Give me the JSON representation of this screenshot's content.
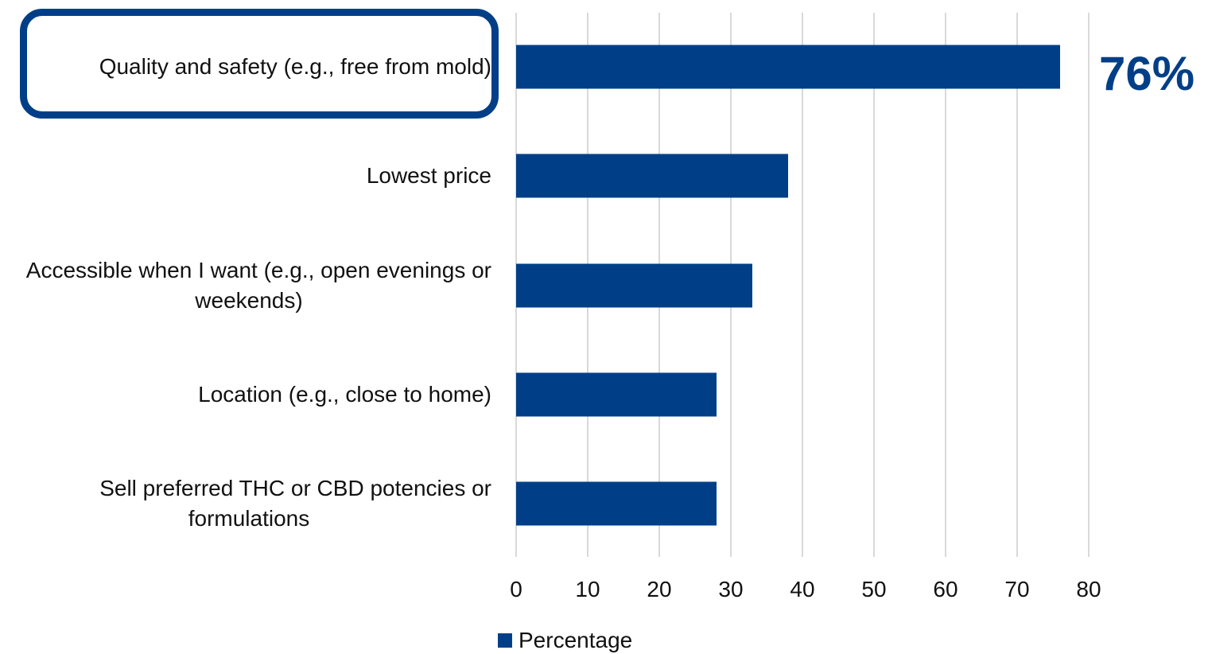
{
  "chart_data": {
    "type": "bar",
    "orientation": "horizontal",
    "categories": [
      "Quality and safety (e.g., free from mold)",
      "Lowest price",
      "Accessible when I want (e.g., open evenings or weekends)",
      "Location (e.g., close to home)",
      "Sell preferred THC or CBD potencies or formulations"
    ],
    "category_lines": [
      [
        "Quality and safety (e.g., free from mold)"
      ],
      [
        "Lowest price"
      ],
      [
        "Accessible when I want (e.g., open evenings or",
        "weekends)"
      ],
      [
        "Location (e.g., close to home)"
      ],
      [
        "Sell preferred THC or CBD potencies or",
        "formulations"
      ]
    ],
    "series": [
      {
        "name": "Percentage",
        "values": [
          76,
          38,
          33,
          28,
          28
        ]
      }
    ],
    "xlim": [
      0,
      80
    ],
    "xticks": [
      "0",
      "10",
      "20",
      "30",
      "40",
      "50",
      "60",
      "70",
      "80"
    ],
    "grid": true,
    "legend": "bottom",
    "highlight": {
      "category_index": 0,
      "callout": "76%"
    },
    "colors": {
      "bar": "#003f87",
      "grid": "#d9d9d9",
      "highlight": "#003f87"
    }
  }
}
